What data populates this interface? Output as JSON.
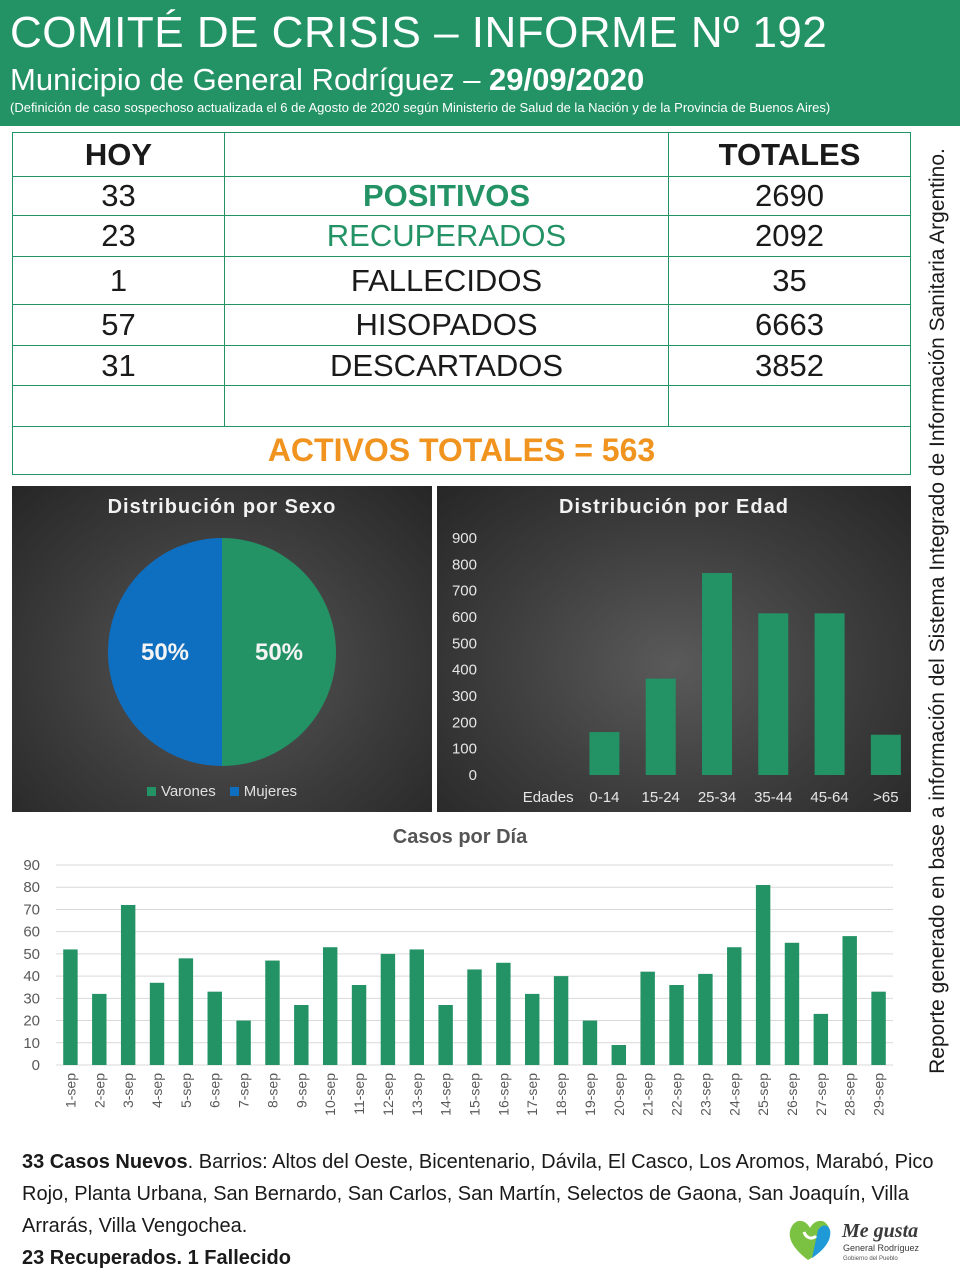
{
  "header": {
    "title": "COMITÉ DE CRISIS – INFORME Nº 192",
    "subtitle_prefix": "Municipio de General Rodríguez – ",
    "subtitle_date": "29/09/2020",
    "note": "(Definición de caso sospechoso actualizada el 6 de Agosto de 2020 según Ministerio de Salud de la Nación y de la Provincia de Buenos Aires)"
  },
  "side_note": "Reporte generado en base a información del Sistema Integrado de Información Sanitaria Argentino.",
  "stats": {
    "col_today": "HOY",
    "col_total": "TOTALES",
    "rows": [
      {
        "today": "33",
        "label": "POSITIVOS",
        "total": "2690"
      },
      {
        "today": "23",
        "label": "RECUPERADOS",
        "total": "2092"
      },
      {
        "today": "1",
        "label": "FALLECIDOS",
        "total": "35"
      },
      {
        "today": "57",
        "label": "HISOPADOS",
        "total": "6663"
      },
      {
        "today": "31",
        "label": "DESCARTADOS",
        "total": "3852"
      }
    ],
    "active_total": "ACTIVOS TOTALES = 563"
  },
  "colors": {
    "green": "#239366",
    "blue": "#0e6fc1",
    "orange": "#f0941f",
    "dark": "#1a1a1a"
  },
  "chart_data": [
    {
      "type": "pie",
      "title": "Distribución por Sexo",
      "labels": [
        "Varones",
        "Mujeres"
      ],
      "values": [
        50,
        50
      ],
      "value_labels": [
        "50%",
        "50%"
      ],
      "colors": [
        "#239366",
        "#0e6fc1"
      ],
      "legend": "bottom"
    },
    {
      "type": "bar",
      "title": "Distribución por Edad",
      "xlabel": "Edades",
      "categories": [
        "0-14",
        "15-24",
        "25-34",
        "35-44",
        "45-64",
        ">65"
      ],
      "values": [
        163,
        366,
        767,
        614,
        614,
        153
      ],
      "yticks": [
        "0",
        "100",
        "200",
        "300",
        "400",
        "500",
        "600",
        "700",
        "800",
        "900"
      ],
      "ylim": [
        0,
        900
      ],
      "color": "#239366"
    },
    {
      "type": "bar",
      "title": "Casos por Día",
      "categories": [
        "1-sep",
        "2-sep",
        "3-sep",
        "4-sep",
        "5-sep",
        "6-sep",
        "7-sep",
        "8-sep",
        "9-sep",
        "10-sep",
        "11-sep",
        "12-sep",
        "13-sep",
        "14-sep",
        "15-sep",
        "16-sep",
        "17-sep",
        "18-sep",
        "19-sep",
        "20-sep",
        "21-sep",
        "22-sep",
        "23-sep",
        "24-sep",
        "25-sep",
        "26-sep",
        "27-sep",
        "28-sep",
        "29-sep"
      ],
      "values": [
        52,
        32,
        72,
        37,
        48,
        33,
        20,
        47,
        27,
        53,
        36,
        50,
        52,
        27,
        43,
        46,
        32,
        40,
        20,
        9,
        42,
        36,
        41,
        53,
        81,
        55,
        23,
        58,
        33
      ],
      "yticks": [
        "0",
        "10",
        "20",
        "30",
        "40",
        "50",
        "60",
        "70",
        "80",
        "90"
      ],
      "ylim": [
        0,
        90
      ],
      "grid": true,
      "color": "#239366"
    }
  ],
  "footer": {
    "new_cases_bold": "33 Casos Nuevos",
    "barrios": ". Barrios: Altos del Oeste, Bicentenario, Dávila, El Casco, Los Aromos, Marabó, Pico Rojo, Planta Urbana, San Bernardo, San Carlos, San Martín, Selectos de Gaona, San Joaquín, Villa Arrarás, Villa Vengochea.",
    "recovered": "23 Recuperados. 1 Fallecido"
  },
  "logo": {
    "text": "Me gusta",
    "line1": "General Rodríguez",
    "line2": "Gobierno del Pueblo"
  }
}
